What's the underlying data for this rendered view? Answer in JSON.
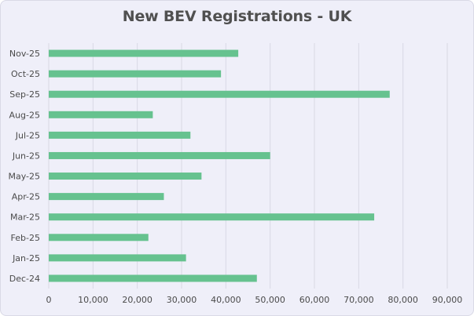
{
  "chart_data": {
    "type": "bar",
    "orientation": "horizontal",
    "title": "New BEV Registrations - UK",
    "xlabel": "",
    "ylabel": "",
    "categories": [
      "Dec-24",
      "Jan-25",
      "Feb-25",
      "Mar-25",
      "Apr-25",
      "May-25",
      "Jun-25",
      "Jul-25",
      "Aug-25",
      "Sep-25",
      "Oct-25",
      "Nov-25"
    ],
    "values": [
      47000,
      31000,
      22500,
      73500,
      26000,
      34500,
      50000,
      32000,
      23500,
      77000,
      38900,
      42800
    ],
    "xlim": [
      0,
      90000
    ],
    "xticks": [
      "0",
      "10,000",
      "20,000",
      "30,000",
      "40,000",
      "50,000",
      "60,000",
      "70,000",
      "80,000",
      "90,000"
    ],
    "xtick_values": [
      0,
      10000,
      20000,
      30000,
      40000,
      50000,
      60000,
      70000,
      80000,
      90000
    ],
    "grid": "vertical",
    "legend": "none",
    "bar_color": "#66c28f",
    "grid_color": "#d8d8e4",
    "background_color": "#efeff9",
    "title_color": "#505050",
    "label_color": "#4a4a4a"
  }
}
